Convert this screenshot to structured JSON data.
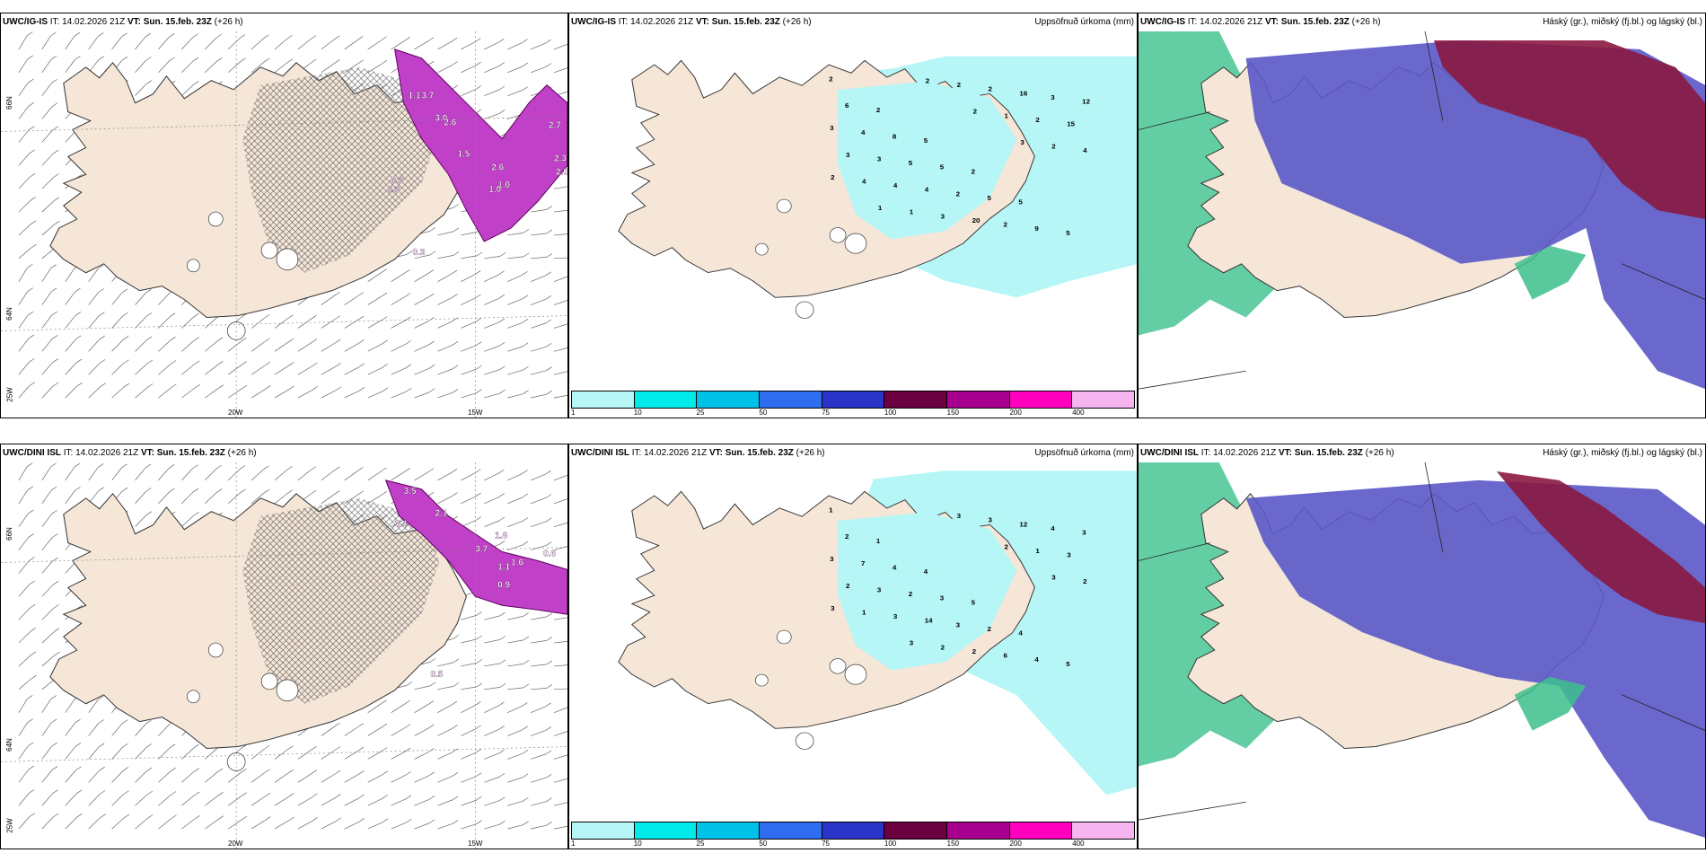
{
  "panels": [
    {
      "model": "UWC/IG-IS",
      "it": "IT: 14.02.2026 21Z",
      "vt": "VT: Sun. 15.feb. 23Z",
      "lead": "(+26 h)",
      "title": ""
    },
    {
      "model": "UWC/IG-IS",
      "it": "IT: 14.02.2026 21Z",
      "vt": "VT: Sun. 15.feb. 23Z",
      "lead": "(+26 h)",
      "title": "Uppsöfnuð úrkoma (mm)"
    },
    {
      "model": "UWC/IG-IS",
      "it": "IT: 14.02.2026 21Z",
      "vt": "VT: Sun. 15.feb. 23Z",
      "lead": "(+26 h)",
      "title": "Háský (gr.), miðský (fj.bl.) og lágský (bl.)"
    },
    {
      "model": "UWC/DINI ISL",
      "it": "IT: 14.02.2026 21Z",
      "vt": "VT: Sun. 15.feb. 23Z",
      "lead": "(+26 h)",
      "title": ""
    },
    {
      "model": "UWC/DINI ISL",
      "it": "IT: 14.02.2026 21Z",
      "vt": "VT: Sun. 15.feb. 23Z",
      "lead": "(+26 h)",
      "title": "Uppsöfnuð úrkoma (mm)"
    },
    {
      "model": "UWC/DINI ISL",
      "it": "IT: 14.02.2026 21Z",
      "vt": "VT: Sun. 15.feb. 23Z",
      "lead": "(+26 h)",
      "title": "Háský (gr.), miðský (fj.bl.) og lágský (bl.)"
    }
  ],
  "axis_labels": {
    "lat_66": "66N",
    "lat_64": "64N",
    "lon_25": "25W",
    "lon_20": "20W",
    "lon_15": "15W"
  },
  "colorbar": {
    "labels": [
      "1",
      "10",
      "25",
      "50",
      "75",
      "100",
      "150",
      "200",
      "400"
    ],
    "colors": [
      "#b6f6f6",
      "#00eaea",
      "#00c2e8",
      "#2f6df0",
      "#2a34c8",
      "#6b0040",
      "#a8008e",
      "#ff00bf",
      "#f6b4f0"
    ]
  },
  "precip_top": [
    "2",
    "2",
    "5",
    "2",
    "5",
    "5",
    "6",
    "8",
    "5",
    "5",
    "9",
    "12",
    "4",
    "5",
    "2",
    "2",
    "3",
    "3",
    "3",
    "4",
    "20",
    "16",
    "15",
    "3",
    "4",
    "3",
    "2",
    "2",
    "4",
    "4",
    "1",
    "2",
    "1",
    "2",
    "2",
    "1",
    "2",
    "2",
    "3"
  ],
  "precip_bottom": [
    "1",
    "1",
    "4",
    "5",
    "4",
    "5",
    "2",
    "4",
    "3",
    "2",
    "4",
    "3",
    "7",
    "2",
    "3",
    "6",
    "4",
    "3",
    "3",
    "14",
    "2",
    "12",
    "3",
    "2",
    "3",
    "2",
    "3",
    "1",
    "2",
    "1",
    "3",
    "3",
    "2",
    "3",
    "3"
  ],
  "wind_top_labels": [
    "1.1",
    "3.7",
    "3.0",
    "2.6",
    "1.5",
    "2.6",
    "2.7",
    "2.3",
    "2.0",
    "1.0",
    "1.0",
    "0.3",
    "0.3",
    "0.3"
  ],
  "wind_bottom_labels": [
    "3.5",
    "2.1",
    "3.4",
    "1.8",
    "3.7",
    "0.6",
    "1.1",
    "1.6",
    "0.9",
    "0.5"
  ],
  "colors": {
    "land": "#f5e6d8",
    "sea": "#ffffff",
    "outline": "#333333",
    "hatch": "#555555",
    "low_cloud": "#5a58c8",
    "mid_cloud": "#8a1840",
    "high_cloud": "#3cc08c"
  }
}
